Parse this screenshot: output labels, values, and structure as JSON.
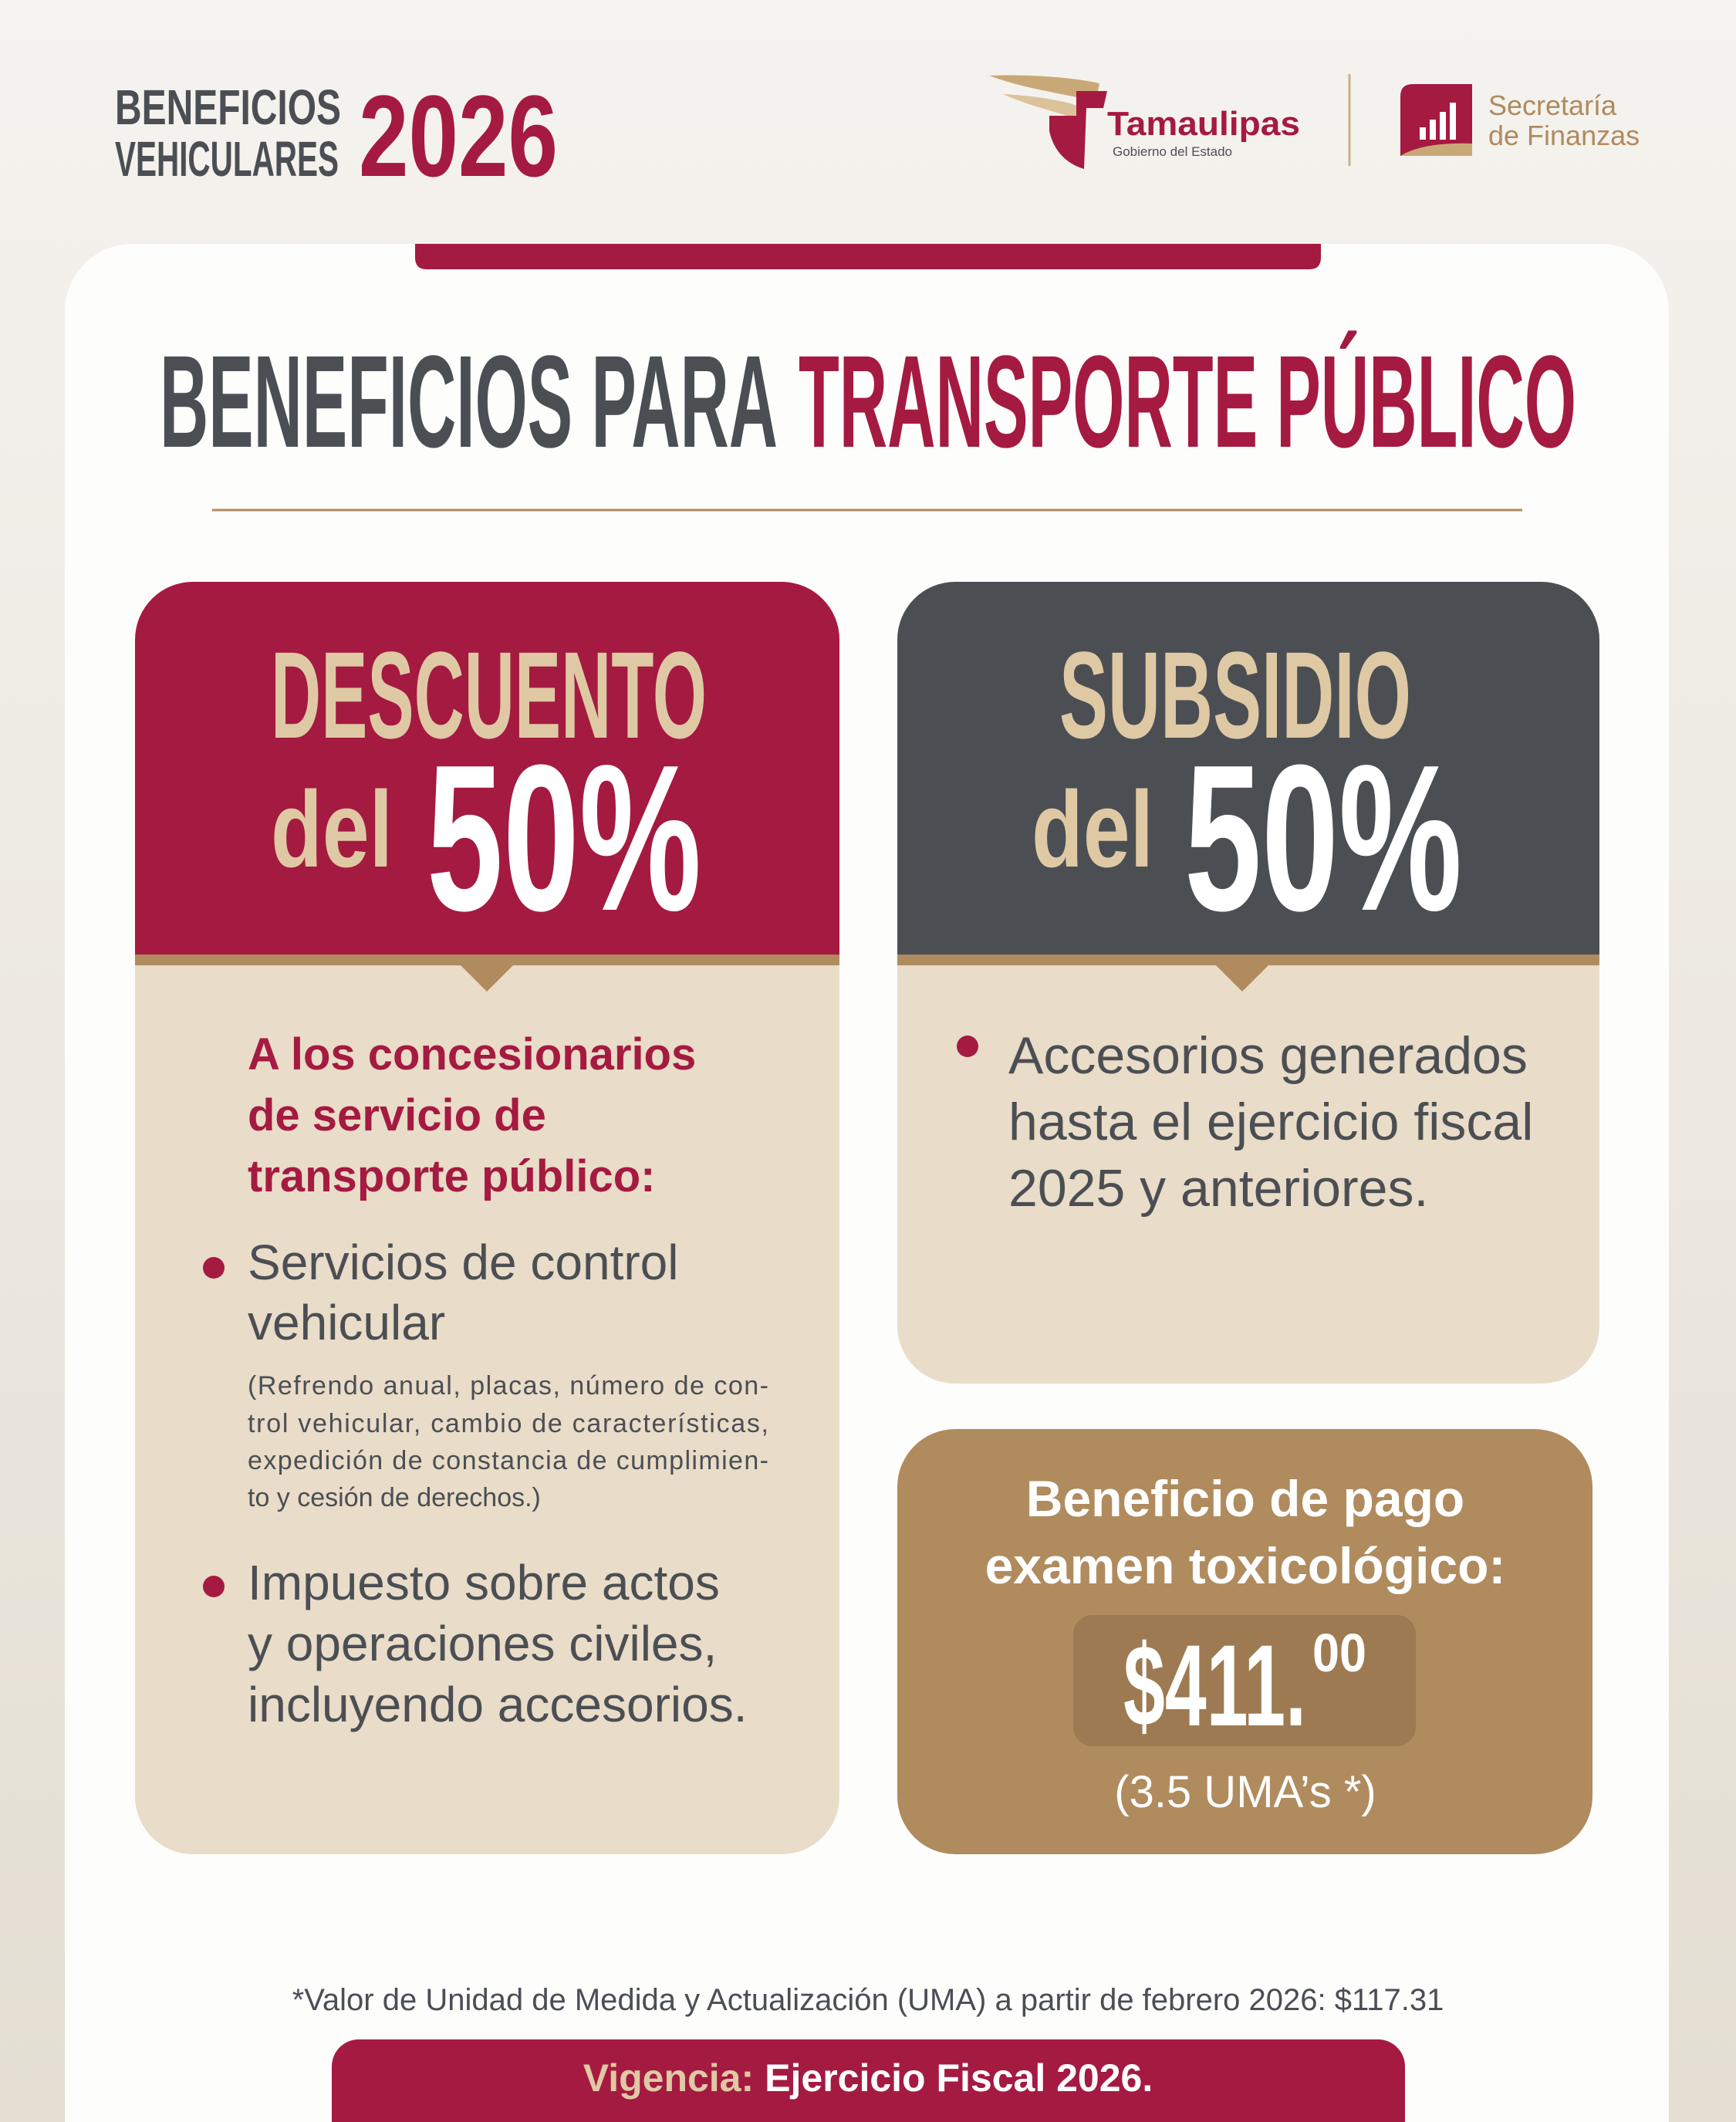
{
  "header": {
    "title_line1": "BENEFICIOS",
    "title_line2": "VEHICULARES",
    "year": "2026",
    "logo1_name": "Tamaulipas",
    "logo1_sub": "Gobierno del Estado",
    "logo2_line1": "Secretaría",
    "logo2_line2": "de Finanzas"
  },
  "heading": {
    "part1": "BENEFICIOS PARA",
    "part2": "TRANSPORTE PÚBLICO"
  },
  "discount": {
    "title": "DESCUENTO",
    "prefix": "del",
    "amount": "50%",
    "intro": [
      "A los concesionarios",
      "de servicio de",
      "transporte público:"
    ],
    "items": [
      {
        "lines": [
          "Servicios de control",
          "vehicular"
        ],
        "note": [
          "(Refrendo anual, placas, número de con-",
          "trol vehicular, cambio de características,",
          "expedición de constancia de cumplimien-",
          "to y cesión de derechos.)"
        ]
      },
      {
        "lines": [
          "Impuesto sobre actos",
          "y operaciones civiles,",
          "incluyendo accesorios."
        ]
      }
    ]
  },
  "subsidy": {
    "title": "SUBSIDIO",
    "prefix": "del",
    "amount": "50%",
    "items": [
      {
        "lines": [
          "Accesorios generados",
          "hasta el ejercicio fiscal",
          "2025 y anteriores."
        ]
      }
    ]
  },
  "toxicology": {
    "title": [
      "Beneficio de pago",
      "examen toxicológico:"
    ],
    "price": "$411.",
    "cents": "00",
    "uma": "(3.5 UMA’s *)"
  },
  "footnote": "*Valor de Unidad de Medida y Actualización (UMA) a partir de febrero 2026: $117.31",
  "validity": {
    "label": "Vigencia:",
    "value": "Ejercicio Fiscal 2026."
  }
}
